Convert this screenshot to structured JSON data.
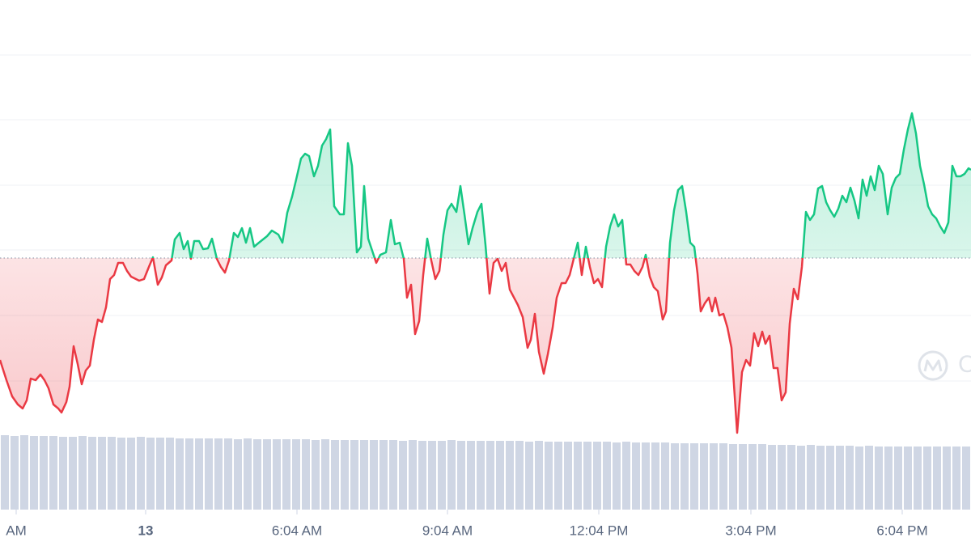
{
  "chart_data": {
    "type": "line",
    "up_color": "#16c784",
    "down_color": "#ea3943",
    "baseline": 241,
    "xlim": [
      0,
      1200
    ],
    "ylim": [
      0,
      500
    ],
    "yticks": [
      89,
      170,
      251,
      331,
      412,
      492
    ],
    "grid": true,
    "xticks": [
      {
        "value": 20,
        "label": "AM"
      },
      {
        "value": 180,
        "label": "13"
      },
      {
        "value": 367,
        "label": "6:04 AM"
      },
      {
        "value": 553,
        "label": "9:04 AM"
      },
      {
        "value": 740,
        "label": "12:04 PM"
      },
      {
        "value": 928,
        "label": "3:04 PM"
      },
      {
        "value": 1115,
        "label": "6:04 PM"
      }
    ],
    "watermark": "CoinMarketCap",
    "x": [
      0,
      8,
      15,
      22,
      28,
      33,
      38,
      44,
      50,
      55,
      60,
      66,
      72,
      76,
      82,
      86,
      91,
      96,
      101,
      106,
      111,
      116,
      121,
      126,
      131,
      136,
      141,
      146,
      152,
      157,
      162,
      172,
      178,
      184,
      189,
      195,
      200,
      205,
      212,
      216,
      222,
      227,
      232,
      236,
      240,
      246,
      251,
      257,
      262,
      268,
      273,
      278,
      283,
      289,
      294,
      299,
      304,
      309,
      314,
      320,
      330,
      336,
      344,
      349,
      355,
      361,
      366,
      372,
      377,
      382,
      388,
      393,
      398,
      403,
      408,
      413,
      420,
      425,
      430,
      435,
      441,
      446,
      450,
      455,
      460,
      465,
      470,
      477,
      483,
      488,
      494,
      499,
      503,
      508,
      513,
      518,
      523,
      528,
      533,
      538,
      543,
      548,
      553,
      558,
      564,
      569,
      574,
      579,
      584,
      590,
      595,
      600,
      605,
      610,
      615,
      620,
      625,
      630,
      640,
      646,
      652,
      656,
      661,
      666,
      672,
      677,
      683,
      688,
      694,
      699,
      704,
      709,
      714,
      719,
      724,
      729,
      734,
      739,
      744,
      749,
      754,
      759,
      764,
      769,
      774,
      779,
      784,
      789,
      794,
      798,
      803,
      808,
      813,
      819,
      823,
      828,
      833,
      838,
      843,
      848,
      853,
      858,
      862,
      866,
      871,
      876,
      880,
      884,
      889,
      894,
      899,
      904,
      911,
      917,
      922,
      927,
      932,
      937,
      942,
      946,
      951,
      956,
      961,
      966,
      971,
      976,
      981,
      986,
      991,
      996,
      1001,
      1006,
      1011,
      1016,
      1021,
      1026,
      1031,
      1036,
      1041,
      1046,
      1051,
      1056,
      1061,
      1066,
      1071,
      1076,
      1081,
      1086,
      1091,
      1097,
      1102,
      1107,
      1112,
      1117,
      1122,
      1127,
      1132,
      1137,
      1142,
      1147,
      1152,
      1157,
      1162,
      1167,
      1172,
      1177,
      1182,
      1187,
      1192,
      1197,
      1200
    ],
    "values": [
      115,
      90,
      70,
      60,
      55,
      65,
      92,
      90,
      97,
      90,
      80,
      60,
      55,
      50,
      63,
      82,
      132,
      110,
      85,
      102,
      108,
      140,
      165,
      162,
      180,
      215,
      220,
      235,
      235,
      225,
      218,
      213,
      215,
      230,
      242,
      208,
      217,
      232,
      238,
      264,
      272,
      252,
      262,
      240,
      262,
      262,
      252,
      253,
      265,
      240,
      230,
      223,
      238,
      272,
      267,
      278,
      260,
      278,
      255,
      260,
      268,
      275,
      270,
      260,
      297,
      317,
      338,
      364,
      370,
      367,
      342,
      355,
      380,
      388,
      400,
      305,
      295,
      295,
      383,
      355,
      248,
      255,
      330,
      265,
      250,
      235,
      245,
      248,
      288,
      258,
      260,
      240,
      192,
      208,
      147,
      163,
      220,
      265,
      238,
      215,
      225,
      270,
      300,
      308,
      298,
      330,
      295,
      258,
      278,
      298,
      308,
      257,
      197,
      235,
      240,
      225,
      235,
      202,
      183,
      168,
      130,
      140,
      172,
      125,
      98,
      122,
      155,
      192,
      210,
      210,
      220,
      240,
      260,
      220,
      255,
      230,
      210,
      215,
      205,
      255,
      280,
      295,
      280,
      288,
      233,
      233,
      225,
      220,
      230,
      245,
      218,
      205,
      200,
      165,
      175,
      260,
      300,
      325,
      330,
      298,
      260,
      255,
      222,
      175,
      185,
      192,
      175,
      192,
      170,
      172,
      155,
      130,
      25,
      100,
      115,
      108,
      148,
      132,
      150,
      135,
      145,
      105,
      105,
      65,
      75,
      160,
      203,
      190,
      230,
      298,
      288,
      295,
      327,
      330,
      310,
      300,
      292,
      302,
      318,
      310,
      328,
      312,
      290,
      338,
      318,
      342,
      325,
      355,
      345,
      295,
      328,
      340,
      345,
      375,
      400,
      420,
      395,
      355,
      332,
      305,
      295,
      290,
      280,
      272,
      285,
      355,
      342,
      342,
      345,
      352,
      350
    ],
    "volume": {
      "color": "#cfd6e4",
      "ylim": [
        0,
        100
      ],
      "values": [
        92,
        91,
        92,
        91,
        91,
        91,
        90,
        90,
        91,
        90,
        90,
        90,
        89,
        89,
        90,
        89,
        89,
        89,
        88,
        88,
        88,
        88,
        88,
        88,
        87,
        88,
        87,
        87,
        87,
        87,
        87,
        87,
        86,
        87,
        86,
        86,
        86,
        86,
        86,
        86,
        86,
        85,
        86,
        85,
        85,
        85,
        86,
        85,
        85,
        85,
        85,
        85,
        85,
        85,
        84,
        85,
        84,
        84,
        84,
        84,
        84,
        84,
        84,
        83,
        84,
        83,
        83,
        83,
        83,
        82,
        82,
        82,
        82,
        82,
        82,
        81,
        81,
        81,
        81,
        80,
        80,
        80,
        79,
        80,
        79,
        79,
        79,
        79,
        78,
        79,
        78,
        78,
        78,
        78,
        78,
        78,
        78,
        78,
        78,
        78
      ]
    }
  }
}
